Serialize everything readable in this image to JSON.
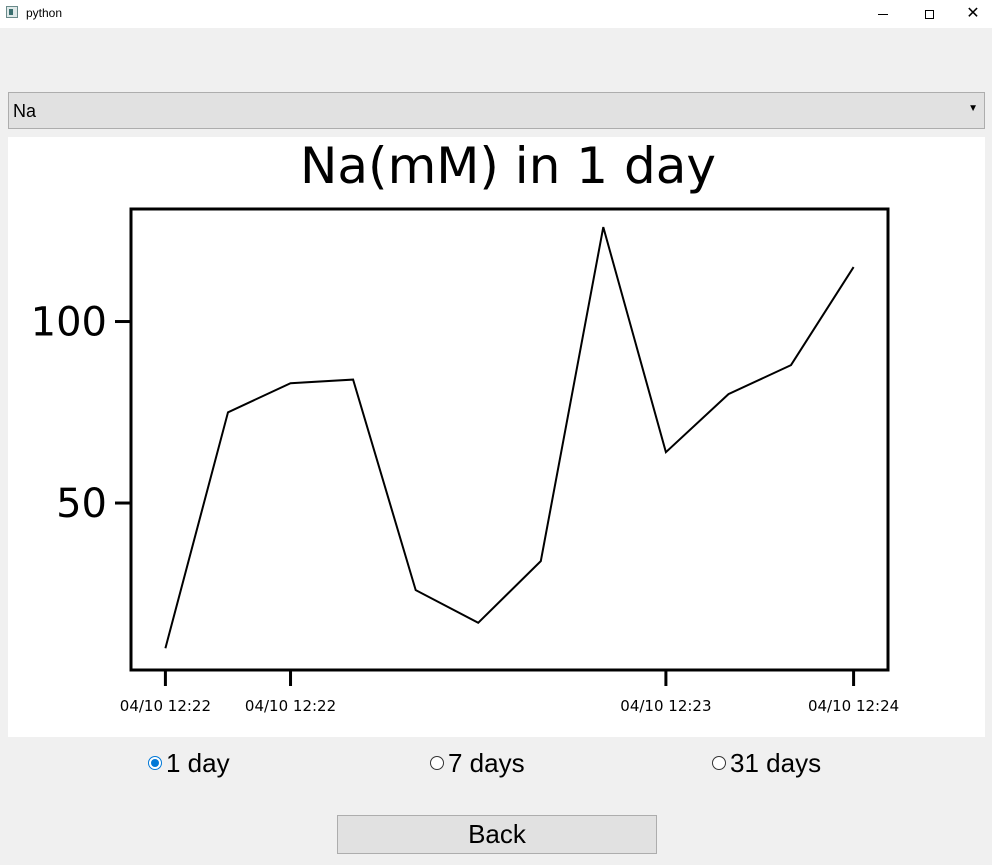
{
  "window": {
    "title": "python"
  },
  "selector": {
    "value": "Na"
  },
  "chart_data": {
    "type": "line",
    "title": "Na(mM) in 1 day",
    "xlabel": "",
    "ylabel": "",
    "x": [
      0,
      1,
      2,
      3,
      4,
      5,
      6,
      7,
      8,
      9,
      10,
      11
    ],
    "values": [
      10,
      75,
      83,
      84,
      26,
      17,
      34,
      126,
      64,
      80,
      88,
      115
    ],
    "ylim": [
      4,
      131
    ],
    "yticks": [
      50,
      100
    ],
    "xticks": [
      {
        "pos": 0,
        "label": "04/10 12:22"
      },
      {
        "pos": 2,
        "label": "04/10 12:22"
      },
      {
        "pos": 8,
        "label": "04/10 12:23"
      },
      {
        "pos": 11,
        "label": "04/10 12:24"
      }
    ],
    "xlim": [
      -0.55,
      11.55
    ],
    "line_color": "#000000",
    "grid": false
  },
  "periods": [
    {
      "label": "1 day",
      "selected": true
    },
    {
      "label": "7 days",
      "selected": false
    },
    {
      "label": "31 days",
      "selected": false
    }
  ],
  "back_label": "Back"
}
